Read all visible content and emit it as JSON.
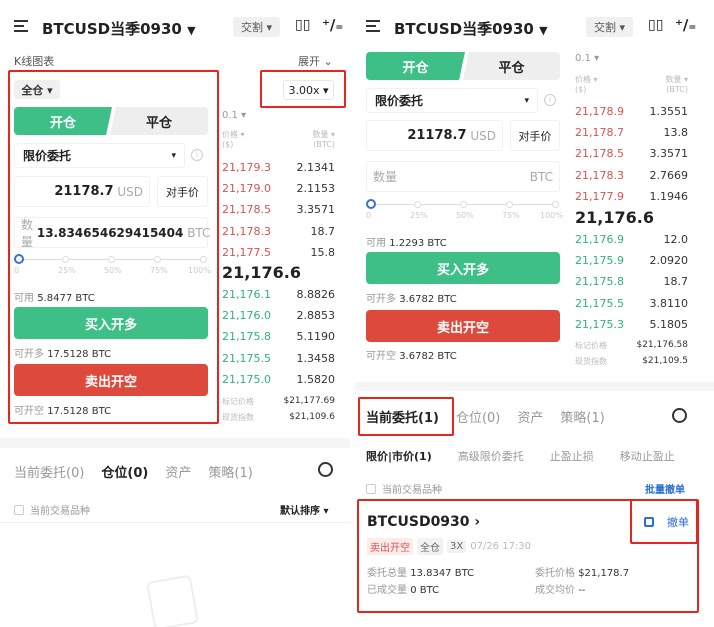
{
  "colors": {
    "green": "#3fbf88",
    "red": "#dd4a3c",
    "highlight": "#e5261f",
    "link": "#2b6fd6"
  },
  "left": {
    "header": {
      "title": "BTCUSD当季0930",
      "caret": "▼",
      "delivery": "交割 ▾",
      "icons": [
        "menu-icon",
        "candlestick-icon",
        "percent-icon"
      ]
    },
    "kline_label": "K线图表",
    "expand": "展开 ⌄",
    "margin_mode": "全仓 ▾",
    "leverage": "3.00x ▾",
    "tabs": [
      "开仓",
      "平仓"
    ],
    "order_type": "限价委托",
    "order_caret": "▾",
    "price": "21178.7",
    "price_unit": "USD",
    "opponent_price": "对手价",
    "qty_label": "数量",
    "qty": "13.834654629415404",
    "qty_unit": "BTC",
    "slider_labels": [
      "0",
      "25%",
      "50%",
      "75%",
      "100%"
    ],
    "slider_value": 0,
    "available_label": "可用",
    "available": "5.8477 BTC",
    "buy": "买入开多",
    "can_long_label": "可开多",
    "can_long": "17.5128 BTC",
    "sell": "卖出开空",
    "can_short_label": "可开空",
    "can_short": "17.5128 BTC",
    "book": {
      "step": "0.1 ▾",
      "price_head": "价格 ▾",
      "price_unit": "($)",
      "qty_head": "数量 ▾",
      "qty_unit": "(BTC)",
      "asks": [
        [
          "21,179.3",
          "2.1341"
        ],
        [
          "21,179.0",
          "2.1153"
        ],
        [
          "21,178.5",
          "3.3571"
        ],
        [
          "21,178.3",
          "18.7"
        ],
        [
          "21,177.5",
          "15.8"
        ]
      ],
      "last": "21,176.6",
      "bids": [
        [
          "21,176.1",
          "8.8826"
        ],
        [
          "21,176.0",
          "2.8853"
        ],
        [
          "21,175.8",
          "5.1190"
        ],
        [
          "21,175.5",
          "1.3458"
        ],
        [
          "21,175.0",
          "1.5820"
        ]
      ],
      "mark_label": "标记价格",
      "mark": "$21,177.69",
      "index_label": "现货指数",
      "index": "$21,109.6"
    },
    "bottom_tabs": [
      "当前委托(0)",
      "仓位(0)",
      "资产",
      "策略(1)"
    ],
    "filter": "当前交易品种",
    "sort": "默认排序 ▾"
  },
  "right": {
    "header": {
      "title": "BTCUSD当季0930",
      "caret": "▼",
      "delivery": "交割 ▾"
    },
    "tabs": [
      "开仓",
      "平仓"
    ],
    "order_type": "限价委托",
    "order_caret": "▾",
    "price": "21178.7",
    "price_unit": "USD",
    "opponent_price": "对手价",
    "qty_label": "数量",
    "qty_unit": "BTC",
    "slider_labels": [
      "0",
      "25%",
      "50%",
      "75%",
      "100%"
    ],
    "slider_value": 0,
    "available_label": "可用",
    "available": "1.2293 BTC",
    "buy": "买入开多",
    "can_long_label": "可开多",
    "can_long": "3.6782 BTC",
    "sell": "卖出开空",
    "can_short_label": "可开空",
    "can_short": "3.6782 BTC",
    "book": {
      "step": "0.1 ▾",
      "price_head": "价格 ▾",
      "price_unit": "($)",
      "qty_head": "数量 ▾",
      "qty_unit": "(BTC)",
      "asks": [
        [
          "21,178.9",
          "1.3551"
        ],
        [
          "21,178.7",
          "13.8"
        ],
        [
          "21,178.5",
          "3.3571"
        ],
        [
          "21,178.3",
          "2.7669"
        ],
        [
          "21,177.9",
          "1.1946"
        ]
      ],
      "last": "21,176.6",
      "bids": [
        [
          "21,176.9",
          "12.0"
        ],
        [
          "21,175.9",
          "2.0920"
        ],
        [
          "21,175.8",
          "18.7"
        ],
        [
          "21,175.5",
          "3.8110"
        ],
        [
          "21,175.3",
          "5.1805"
        ]
      ],
      "mark_label": "标记价格",
      "mark": "$21,176.58",
      "index_label": "现货指数",
      "index": "$21,109.5"
    },
    "bottom_tabs": [
      "当前委托(1)",
      "仓位(0)",
      "资产",
      "策略(1)"
    ],
    "sub_tabs": [
      "限价|市价(1)",
      "高级限价委托",
      "止盈止损",
      "移动止盈止"
    ],
    "filter": "当前交易品种",
    "batch_cancel": "批量撤单",
    "order": {
      "symbol": "BTCUSD0930 ›",
      "side": "卖出开空",
      "mode": "全仓",
      "lev": "3X",
      "time": "07/26 17:30",
      "cancel": "撤单",
      "total_label": "委托总量",
      "total": "13.8347 BTC",
      "price_label": "委托价格",
      "price": "$21,178.7",
      "filled_label": "已成交量",
      "filled": "0 BTC",
      "avg_label": "成交均价",
      "avg": "--"
    }
  }
}
